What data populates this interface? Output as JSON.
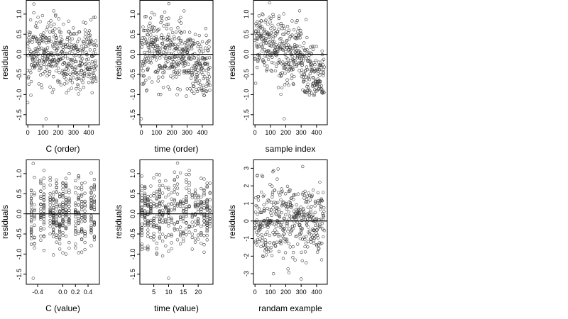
{
  "chart_data": [
    {
      "type": "scatter",
      "title": "",
      "xlabel": "C (order)",
      "ylabel": "residuals",
      "xlim": [
        -10,
        470
      ],
      "ylim": [
        -1.75,
        1.35
      ],
      "xticks": [
        0,
        100,
        200,
        300,
        400
      ],
      "xtick_labels": [
        "0",
        "100",
        "200",
        "300",
        "400"
      ],
      "yticks": [
        -1.5,
        -1.0,
        -0.5,
        0.0,
        0.5,
        1.0
      ],
      "ytick_labels": [
        "-1.5",
        "-1.0",
        "-0.5",
        "0.0",
        "0.5",
        "1.0"
      ],
      "hline": 0,
      "series": [
        {
          "x_range": [
            0,
            450
          ],
          "n": 450,
          "pattern": "order_c",
          "seed": 11
        }
      ],
      "highlights": [
        {
          "x": 40,
          "y": 1.25
        },
        {
          "x": 120,
          "y": -1.6
        },
        {
          "x": 170,
          "y": 1.08
        },
        {
          "x": 0,
          "y": -1.2
        }
      ]
    },
    {
      "type": "scatter",
      "title": "",
      "xlabel": "time (order)",
      "ylabel": "residuals",
      "xlim": [
        -10,
        470
      ],
      "ylim": [
        -1.75,
        1.35
      ],
      "xticks": [
        0,
        100,
        200,
        300,
        400
      ],
      "xtick_labels": [
        "0",
        "100",
        "200",
        "300",
        "400"
      ],
      "yticks": [
        -1.5,
        -1.0,
        -0.5,
        0.0,
        0.5,
        1.0
      ],
      "ytick_labels": [
        "-1.5",
        "-1.0",
        "-0.5",
        "0.0",
        "0.5",
        "1.0"
      ],
      "hline": 0,
      "series": [
        {
          "x_range": [
            0,
            450
          ],
          "n": 450,
          "pattern": "order_time",
          "seed": 23
        }
      ],
      "highlights": [
        {
          "x": 180,
          "y": 1.26
        },
        {
          "x": 280,
          "y": 1.08
        },
        {
          "x": 0,
          "y": -1.6
        }
      ]
    },
    {
      "type": "scatter",
      "title": "",
      "xlabel": "sample index",
      "ylabel": "residuals",
      "xlim": [
        -10,
        470
      ],
      "ylim": [
        -1.75,
        1.35
      ],
      "xticks": [
        0,
        100,
        200,
        300,
        400
      ],
      "xtick_labels": [
        "0",
        "100",
        "200",
        "300",
        "400"
      ],
      "yticks": [
        -1.5,
        -1.0,
        -0.5,
        0.0,
        0.5,
        1.0
      ],
      "ytick_labels": [
        "-1.5",
        "-1.0",
        "-0.5",
        "0.0",
        "0.5",
        "1.0"
      ],
      "hline": 0,
      "series": [
        {
          "x_range": [
            0,
            450
          ],
          "n": 450,
          "pattern": "sample",
          "seed": 37
        }
      ],
      "highlights": [
        {
          "x": 95,
          "y": 1.28
        },
        {
          "x": 190,
          "y": -1.6
        },
        {
          "x": 290,
          "y": 1.08
        }
      ]
    },
    {
      "type": "scatter",
      "title": "",
      "xlabel": "C (value)",
      "ylabel": "residuals",
      "xlim": [
        -0.58,
        0.58
      ],
      "ylim": [
        -1.75,
        1.35
      ],
      "xticks": [
        -0.4,
        0.0,
        0.2,
        0.4
      ],
      "xtick_labels": [
        "-0.4",
        "0.0",
        "0.2",
        "0.4"
      ],
      "yticks": [
        -1.5,
        -1.0,
        -0.5,
        0.0,
        0.5,
        1.0
      ],
      "ytick_labels": [
        "-1.5",
        "-1.0",
        "-0.5",
        "0.0",
        "0.5",
        "1.0"
      ],
      "hline": 0,
      "series": [
        {
          "x_values": [
            -0.5,
            -0.45,
            -0.35,
            -0.3,
            -0.2,
            -0.15,
            -0.1,
            -0.05,
            0.0,
            0.05,
            0.1,
            0.2,
            0.25,
            0.3,
            0.35,
            0.45,
            0.5
          ],
          "n": 420,
          "pattern": "value_c",
          "seed": 51
        }
      ],
      "highlights": [
        {
          "x": -0.47,
          "y": 1.25
        },
        {
          "x": -0.47,
          "y": -1.6
        },
        {
          "x": -0.3,
          "y": 1.08
        }
      ]
    },
    {
      "type": "scatter",
      "title": "",
      "xlabel": "time (value)",
      "ylabel": "residuals",
      "xlim": [
        0.3,
        25
      ],
      "ylim": [
        -1.75,
        1.35
      ],
      "xticks": [
        5,
        10,
        15,
        20
      ],
      "xtick_labels": [
        "5",
        "10",
        "15",
        "20"
      ],
      "yticks": [
        -1.5,
        -1.0,
        -0.5,
        0.0,
        0.5,
        1.0
      ],
      "ytick_labels": [
        "-1.5",
        "-1.0",
        "-0.5",
        "0.0",
        "0.5",
        "1.0"
      ],
      "hline": 0,
      "series": [
        {
          "x_values": [
            1,
            2,
            3,
            4,
            5,
            6,
            7,
            8,
            9,
            10,
            11,
            12,
            13,
            14,
            15,
            16,
            17,
            18,
            19,
            20,
            21,
            22,
            23,
            24
          ],
          "n": 430,
          "pattern": "value_time",
          "seed": 67
        }
      ],
      "highlights": [
        {
          "x": 13,
          "y": 1.26
        },
        {
          "x": 17,
          "y": 1.08
        },
        {
          "x": 10,
          "y": -1.6
        }
      ]
    },
    {
      "type": "scatter",
      "title": "",
      "xlabel": "randam example",
      "ylabel": "residuals",
      "xlim": [
        -10,
        470
      ],
      "ylim": [
        -3.6,
        3.5
      ],
      "xticks": [
        0,
        100,
        200,
        300,
        400
      ],
      "xtick_labels": [
        "0",
        "100",
        "200",
        "300",
        "400"
      ],
      "yticks": [
        -3,
        -2,
        -1,
        0,
        1,
        2,
        3
      ],
      "ytick_labels": [
        "-3",
        "-2",
        "-1",
        "0",
        "1",
        "2",
        "3"
      ],
      "hline": 0,
      "series": [
        {
          "x_range": [
            0,
            450
          ],
          "n": 420,
          "pattern": "random",
          "seed": 83
        }
      ],
      "highlights": [
        {
          "x": 310,
          "y": 3.1
        },
        {
          "x": 300,
          "y": -3.3
        },
        {
          "x": 120,
          "y": -3.0
        }
      ]
    }
  ]
}
